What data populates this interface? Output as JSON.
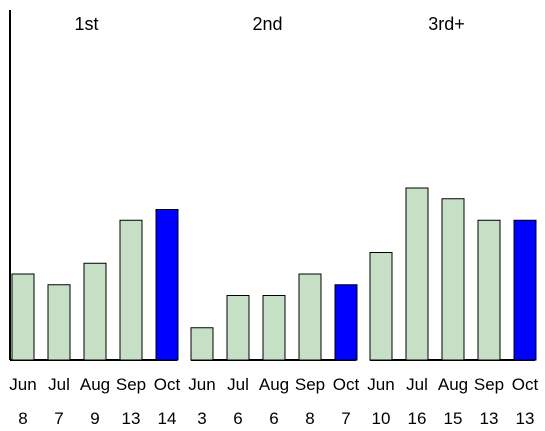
{
  "chart_data": {
    "type": "bar",
    "groups": [
      {
        "label": "1st",
        "categories": [
          "Jun",
          "Jul",
          "Aug",
          "Sep",
          "Oct"
        ],
        "values": [
          8,
          7,
          9,
          13,
          14
        ]
      },
      {
        "label": "2nd",
        "categories": [
          "Jun",
          "Jul",
          "Aug",
          "Sep",
          "Oct"
        ],
        "values": [
          3,
          6,
          6,
          8,
          7
        ]
      },
      {
        "label": "3rd+",
        "categories": [
          "Jun",
          "Jul",
          "Aug",
          "Sep",
          "Oct"
        ],
        "values": [
          10,
          16,
          15,
          13,
          13
        ]
      }
    ],
    "highlight_category": "Oct",
    "colors": {
      "bar": "#c6e0c6",
      "highlight": "#0000ff",
      "bar_stroke": "#000000"
    },
    "grid": false,
    "legend": "none"
  }
}
